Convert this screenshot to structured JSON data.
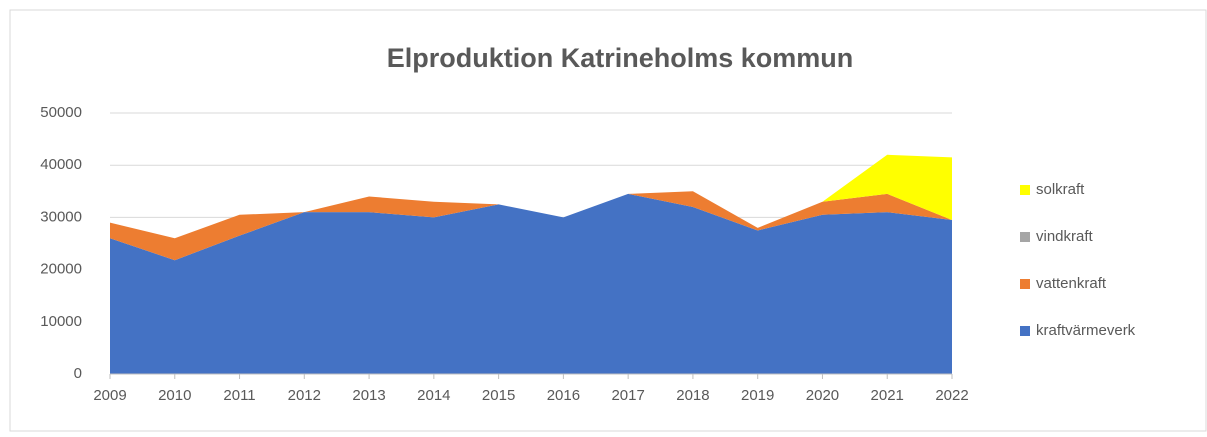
{
  "chart_data": {
    "type": "stacked_area",
    "title": "Elproduktion Katrineholms kommun",
    "categories": [
      "2009",
      "2010",
      "2011",
      "2012",
      "2013",
      "2014",
      "2015",
      "2016",
      "2017",
      "2018",
      "2019",
      "2020",
      "2021",
      "2022"
    ],
    "series": [
      {
        "name": "kraftvärmeverk",
        "color": "#4472c4",
        "values": [
          26000,
          21800,
          26500,
          31000,
          31000,
          30000,
          32500,
          30000,
          34500,
          32000,
          27500,
          30500,
          31000,
          29500
        ]
      },
      {
        "name": "vattenkraft",
        "color": "#ed7d31",
        "values": [
          3000,
          4200,
          4000,
          0,
          3000,
          3000,
          0,
          0,
          0,
          3000,
          500,
          2500,
          3500,
          0
        ]
      },
      {
        "name": "vindkraft",
        "color": "#a5a5a5",
        "values": [
          0,
          0,
          0,
          0,
          0,
          0,
          0,
          0,
          0,
          0,
          0,
          0,
          0,
          0
        ]
      },
      {
        "name": "solkraft",
        "color": "#ffff00",
        "values": [
          0,
          0,
          0,
          0,
          0,
          0,
          0,
          0,
          0,
          0,
          0,
          0,
          7500,
          12000
        ]
      }
    ],
    "ylim": [
      0,
      50000
    ],
    "yticks": [
      0,
      10000,
      20000,
      30000,
      40000,
      50000
    ],
    "grid": true,
    "legend": "right"
  }
}
